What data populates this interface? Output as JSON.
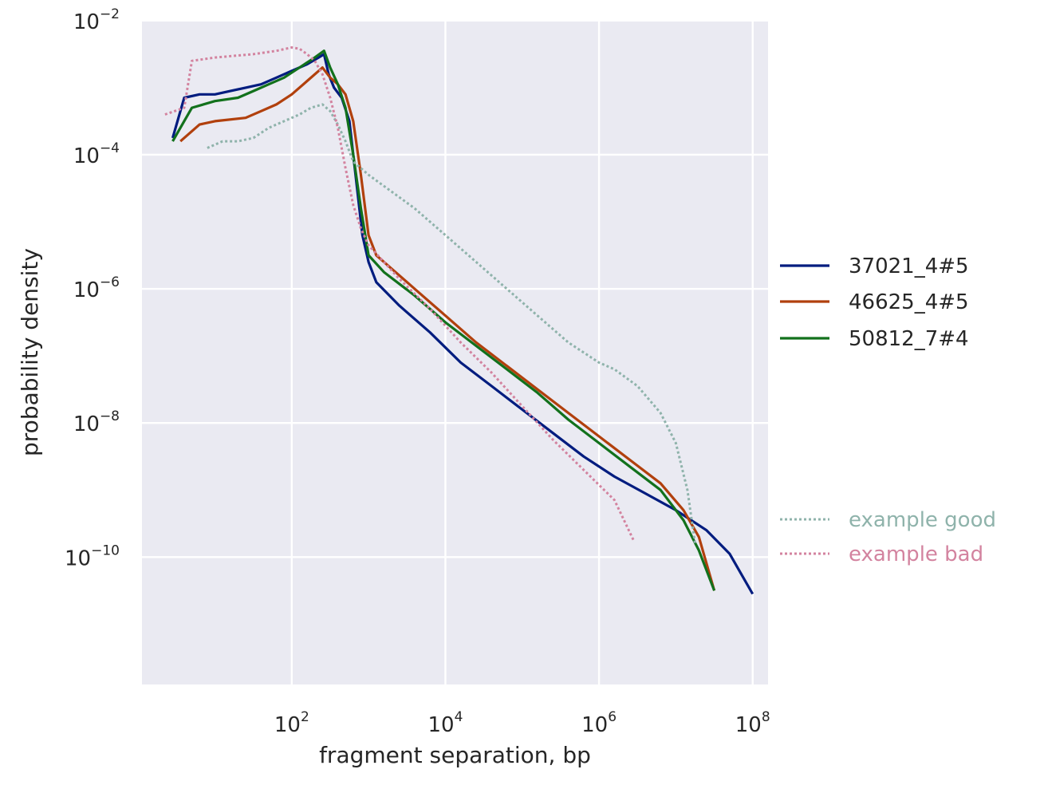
{
  "chart_data": {
    "type": "line",
    "title": "",
    "xlabel": "fragment separation, bp",
    "ylabel": "probability density",
    "xscale": "log",
    "yscale": "log",
    "xlim_log10": [
      0.05,
      8.2
    ],
    "ylim_log10": [
      -11.9,
      -1.99
    ],
    "x_ticks": [
      {
        "base": "10",
        "exp": "2"
      },
      {
        "base": "10",
        "exp": "4"
      },
      {
        "base": "10",
        "exp": "6"
      },
      {
        "base": "10",
        "exp": "8"
      }
    ],
    "y_ticks": [
      {
        "base": "10",
        "exp": "−2"
      },
      {
        "base": "10",
        "exp": "−4"
      },
      {
        "base": "10",
        "exp": "−6"
      },
      {
        "base": "10",
        "exp": "−8"
      },
      {
        "base": "10",
        "exp": "−10"
      }
    ],
    "x_tick_values_log10": [
      2,
      4,
      6,
      8
    ],
    "y_tick_values_log10": [
      -2,
      -4,
      -6,
      -8,
      -10
    ],
    "grid": true,
    "background": "#eaeaf2",
    "legend_placement": "right",
    "series": [
      {
        "name": "37021_4#5",
        "color": "#001c7f",
        "style": "solid",
        "points_log10": [
          [
            0.45,
            -3.75
          ],
          [
            0.6,
            -3.15
          ],
          [
            0.8,
            -3.1
          ],
          [
            1.0,
            -3.1
          ],
          [
            1.2,
            -3.05
          ],
          [
            1.4,
            -3.0
          ],
          [
            1.6,
            -2.95
          ],
          [
            1.8,
            -2.85
          ],
          [
            2.0,
            -2.75
          ],
          [
            2.2,
            -2.65
          ],
          [
            2.35,
            -2.55
          ],
          [
            2.42,
            -2.5
          ],
          [
            2.48,
            -2.8
          ],
          [
            2.55,
            -3.0
          ],
          [
            2.65,
            -3.15
          ],
          [
            2.75,
            -3.5
          ],
          [
            2.85,
            -4.5
          ],
          [
            2.92,
            -5.2
          ],
          [
            3.0,
            -5.6
          ],
          [
            3.1,
            -5.9
          ],
          [
            3.4,
            -6.25
          ],
          [
            3.8,
            -6.65
          ],
          [
            4.2,
            -7.1
          ],
          [
            4.6,
            -7.45
          ],
          [
            5.0,
            -7.8
          ],
          [
            5.4,
            -8.15
          ],
          [
            5.8,
            -8.5
          ],
          [
            6.2,
            -8.8
          ],
          [
            6.6,
            -9.05
          ],
          [
            7.0,
            -9.3
          ],
          [
            7.4,
            -9.6
          ],
          [
            7.7,
            -9.95
          ],
          [
            8.0,
            -10.55
          ]
        ]
      },
      {
        "name": "46625_4#5",
        "color": "#b1400d",
        "style": "solid",
        "points_log10": [
          [
            0.55,
            -3.8
          ],
          [
            0.8,
            -3.55
          ],
          [
            1.0,
            -3.5
          ],
          [
            1.4,
            -3.45
          ],
          [
            1.6,
            -3.35
          ],
          [
            1.8,
            -3.25
          ],
          [
            2.0,
            -3.1
          ],
          [
            2.2,
            -2.9
          ],
          [
            2.35,
            -2.75
          ],
          [
            2.4,
            -2.7
          ],
          [
            2.5,
            -2.85
          ],
          [
            2.6,
            -2.95
          ],
          [
            2.7,
            -3.1
          ],
          [
            2.8,
            -3.5
          ],
          [
            2.9,
            -4.3
          ],
          [
            3.0,
            -5.2
          ],
          [
            3.1,
            -5.5
          ],
          [
            3.3,
            -5.7
          ],
          [
            3.6,
            -6.0
          ],
          [
            4.0,
            -6.4
          ],
          [
            4.4,
            -6.8
          ],
          [
            4.8,
            -7.15
          ],
          [
            5.2,
            -7.5
          ],
          [
            5.6,
            -7.85
          ],
          [
            6.0,
            -8.2
          ],
          [
            6.4,
            -8.55
          ],
          [
            6.8,
            -8.9
          ],
          [
            7.1,
            -9.3
          ],
          [
            7.3,
            -9.7
          ],
          [
            7.5,
            -10.5
          ]
        ]
      },
      {
        "name": "50812_7#4",
        "color": "#12711c",
        "style": "solid",
        "points_log10": [
          [
            0.45,
            -3.8
          ],
          [
            0.7,
            -3.3
          ],
          [
            1.0,
            -3.2
          ],
          [
            1.3,
            -3.15
          ],
          [
            1.5,
            -3.05
          ],
          [
            1.7,
            -2.95
          ],
          [
            1.9,
            -2.85
          ],
          [
            2.1,
            -2.7
          ],
          [
            2.3,
            -2.55
          ],
          [
            2.42,
            -2.45
          ],
          [
            2.5,
            -2.7
          ],
          [
            2.6,
            -2.95
          ],
          [
            2.7,
            -3.3
          ],
          [
            2.8,
            -4.0
          ],
          [
            2.9,
            -4.8
          ],
          [
            3.0,
            -5.5
          ],
          [
            3.2,
            -5.75
          ],
          [
            3.6,
            -6.1
          ],
          [
            4.0,
            -6.5
          ],
          [
            4.4,
            -6.85
          ],
          [
            4.8,
            -7.2
          ],
          [
            5.2,
            -7.55
          ],
          [
            5.6,
            -7.95
          ],
          [
            6.0,
            -8.3
          ],
          [
            6.4,
            -8.65
          ],
          [
            6.8,
            -9.0
          ],
          [
            7.1,
            -9.45
          ],
          [
            7.3,
            -9.9
          ],
          [
            7.5,
            -10.5
          ]
        ]
      },
      {
        "name": "example good",
        "color": "#8fb3ab",
        "style": "dotted",
        "points_log10": [
          [
            0.9,
            -3.9
          ],
          [
            1.1,
            -3.8
          ],
          [
            1.3,
            -3.8
          ],
          [
            1.5,
            -3.75
          ],
          [
            1.7,
            -3.6
          ],
          [
            1.9,
            -3.5
          ],
          [
            2.1,
            -3.4
          ],
          [
            2.25,
            -3.3
          ],
          [
            2.4,
            -3.25
          ],
          [
            2.5,
            -3.35
          ],
          [
            2.6,
            -3.55
          ],
          [
            2.7,
            -3.8
          ],
          [
            2.8,
            -4.1
          ],
          [
            3.0,
            -4.3
          ],
          [
            3.3,
            -4.55
          ],
          [
            3.6,
            -4.8
          ],
          [
            4.0,
            -5.2
          ],
          [
            4.4,
            -5.6
          ],
          [
            4.8,
            -6.0
          ],
          [
            5.2,
            -6.4
          ],
          [
            5.6,
            -6.8
          ],
          [
            6.0,
            -7.1
          ],
          [
            6.2,
            -7.2
          ],
          [
            6.5,
            -7.45
          ],
          [
            6.8,
            -7.85
          ],
          [
            7.0,
            -8.3
          ],
          [
            7.15,
            -9.0
          ],
          [
            7.25,
            -9.8
          ]
        ]
      },
      {
        "name": "example bad",
        "color": "#d3839f",
        "style": "dotted",
        "points_log10": [
          [
            0.35,
            -3.4
          ],
          [
            0.6,
            -3.3
          ],
          [
            0.7,
            -2.6
          ],
          [
            1.0,
            -2.55
          ],
          [
            1.5,
            -2.5
          ],
          [
            1.8,
            -2.45
          ],
          [
            2.0,
            -2.4
          ],
          [
            2.1,
            -2.42
          ],
          [
            2.2,
            -2.5
          ],
          [
            2.3,
            -2.6
          ],
          [
            2.4,
            -2.8
          ],
          [
            2.5,
            -3.15
          ],
          [
            2.6,
            -3.6
          ],
          [
            2.7,
            -4.2
          ],
          [
            2.8,
            -4.75
          ],
          [
            2.9,
            -5.1
          ],
          [
            3.0,
            -5.35
          ],
          [
            3.4,
            -5.85
          ],
          [
            3.8,
            -6.3
          ],
          [
            4.2,
            -6.8
          ],
          [
            4.6,
            -7.25
          ],
          [
            5.0,
            -7.75
          ],
          [
            5.4,
            -8.25
          ],
          [
            5.8,
            -8.7
          ],
          [
            6.2,
            -9.15
          ],
          [
            6.45,
            -9.75
          ]
        ]
      }
    ]
  }
}
